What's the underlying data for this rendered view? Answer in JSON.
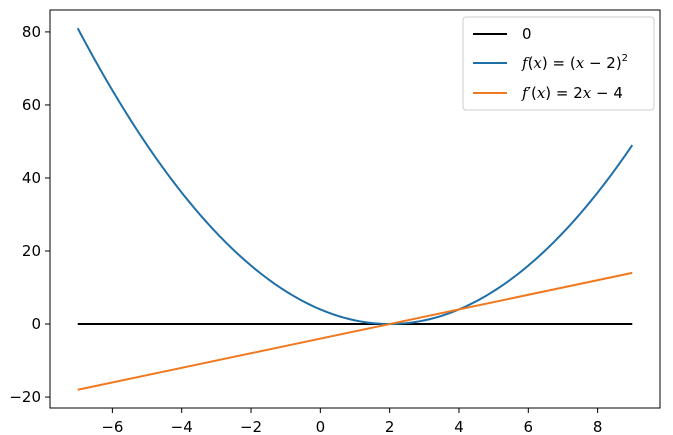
{
  "chart_data": {
    "type": "line",
    "title": "",
    "xlabel": "",
    "ylabel": "",
    "xlim": [
      -7.8,
      9.8
    ],
    "ylim": [
      -23,
      86
    ],
    "xticks": [
      -6,
      -4,
      -2,
      0,
      2,
      4,
      6,
      8
    ],
    "yticks": [
      -20,
      0,
      20,
      40,
      60,
      80
    ],
    "xtick_labels": [
      "−6",
      "−4",
      "−2",
      "0",
      "2",
      "4",
      "6",
      "8"
    ],
    "ytick_labels": [
      "−20",
      "0",
      "20",
      "40",
      "60",
      "80"
    ],
    "grid": false,
    "legend_position": "top-right",
    "x_range": [
      -7,
      9
    ],
    "series": [
      {
        "name": "0",
        "color": "#000000",
        "expression": "0",
        "x": [
          -7,
          9
        ],
        "y": [
          0,
          0
        ]
      },
      {
        "name": "f(x) = (x − 2)²",
        "color": "#1f6fa8",
        "expression": "(x-2)^2",
        "x": [
          -7,
          -6,
          -5,
          -4,
          -3,
          -2,
          -1,
          0,
          1,
          2,
          3,
          4,
          5,
          6,
          7,
          8,
          9
        ],
        "y": [
          81,
          64,
          49,
          36,
          25,
          16,
          9,
          4,
          1,
          0,
          1,
          4,
          9,
          16,
          25,
          36,
          49
        ]
      },
      {
        "name": "f′(x) = 2x − 4",
        "color": "#f0781e",
        "expression": "2x-4",
        "x": [
          -7,
          9
        ],
        "y": [
          -18,
          14
        ]
      }
    ]
  }
}
